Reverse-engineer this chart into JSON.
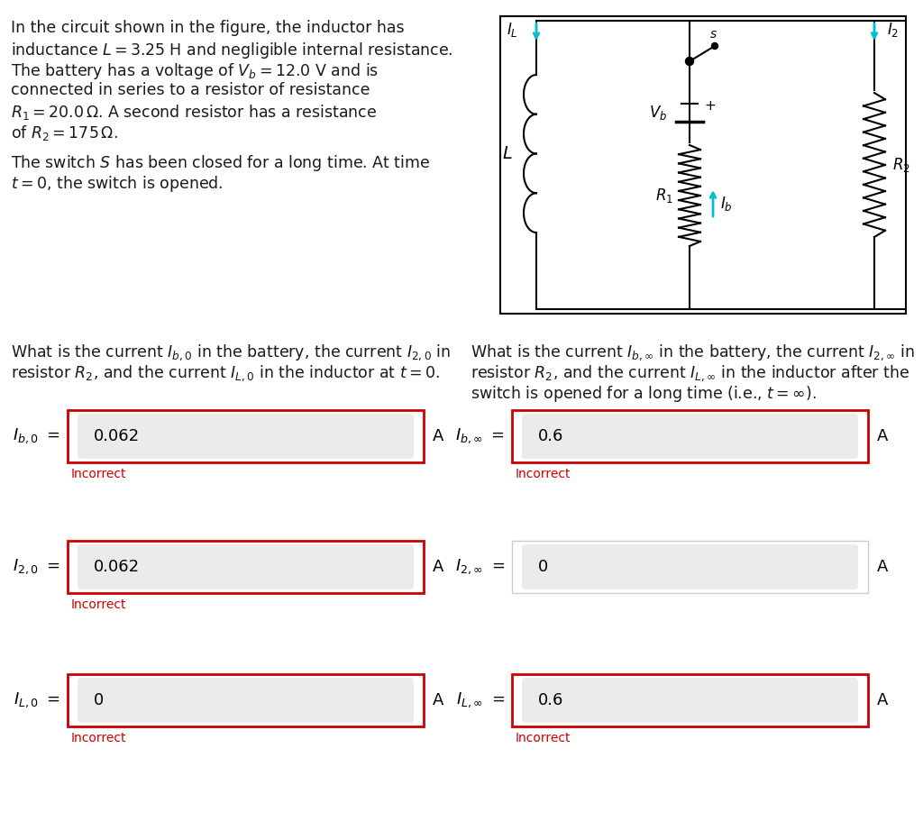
{
  "bg_color": "#ffffff",
  "text_color": "#1a1a1a",
  "incorrect_color": "#cc0000",
  "box_border_color": "#cc0000",
  "input_bg": "#ebebeb",
  "cyan_color": "#00bcd4",
  "left_labels": [
    "$I_{b,0}$",
    "$I_{2,0}$",
    "$I_{L,0}$"
  ],
  "left_values": [
    "0.062",
    "0.062",
    "0"
  ],
  "right_labels": [
    "$I_{b,\\infty}$",
    "$I_{2,\\infty}$",
    "$I_{L,\\infty}$"
  ],
  "right_values": [
    "0.6",
    "0",
    "0.6"
  ],
  "left_incorrect": [
    true,
    true,
    true
  ],
  "right_incorrect": [
    true,
    false,
    true
  ],
  "right_has_border": [
    true,
    false,
    true
  ]
}
